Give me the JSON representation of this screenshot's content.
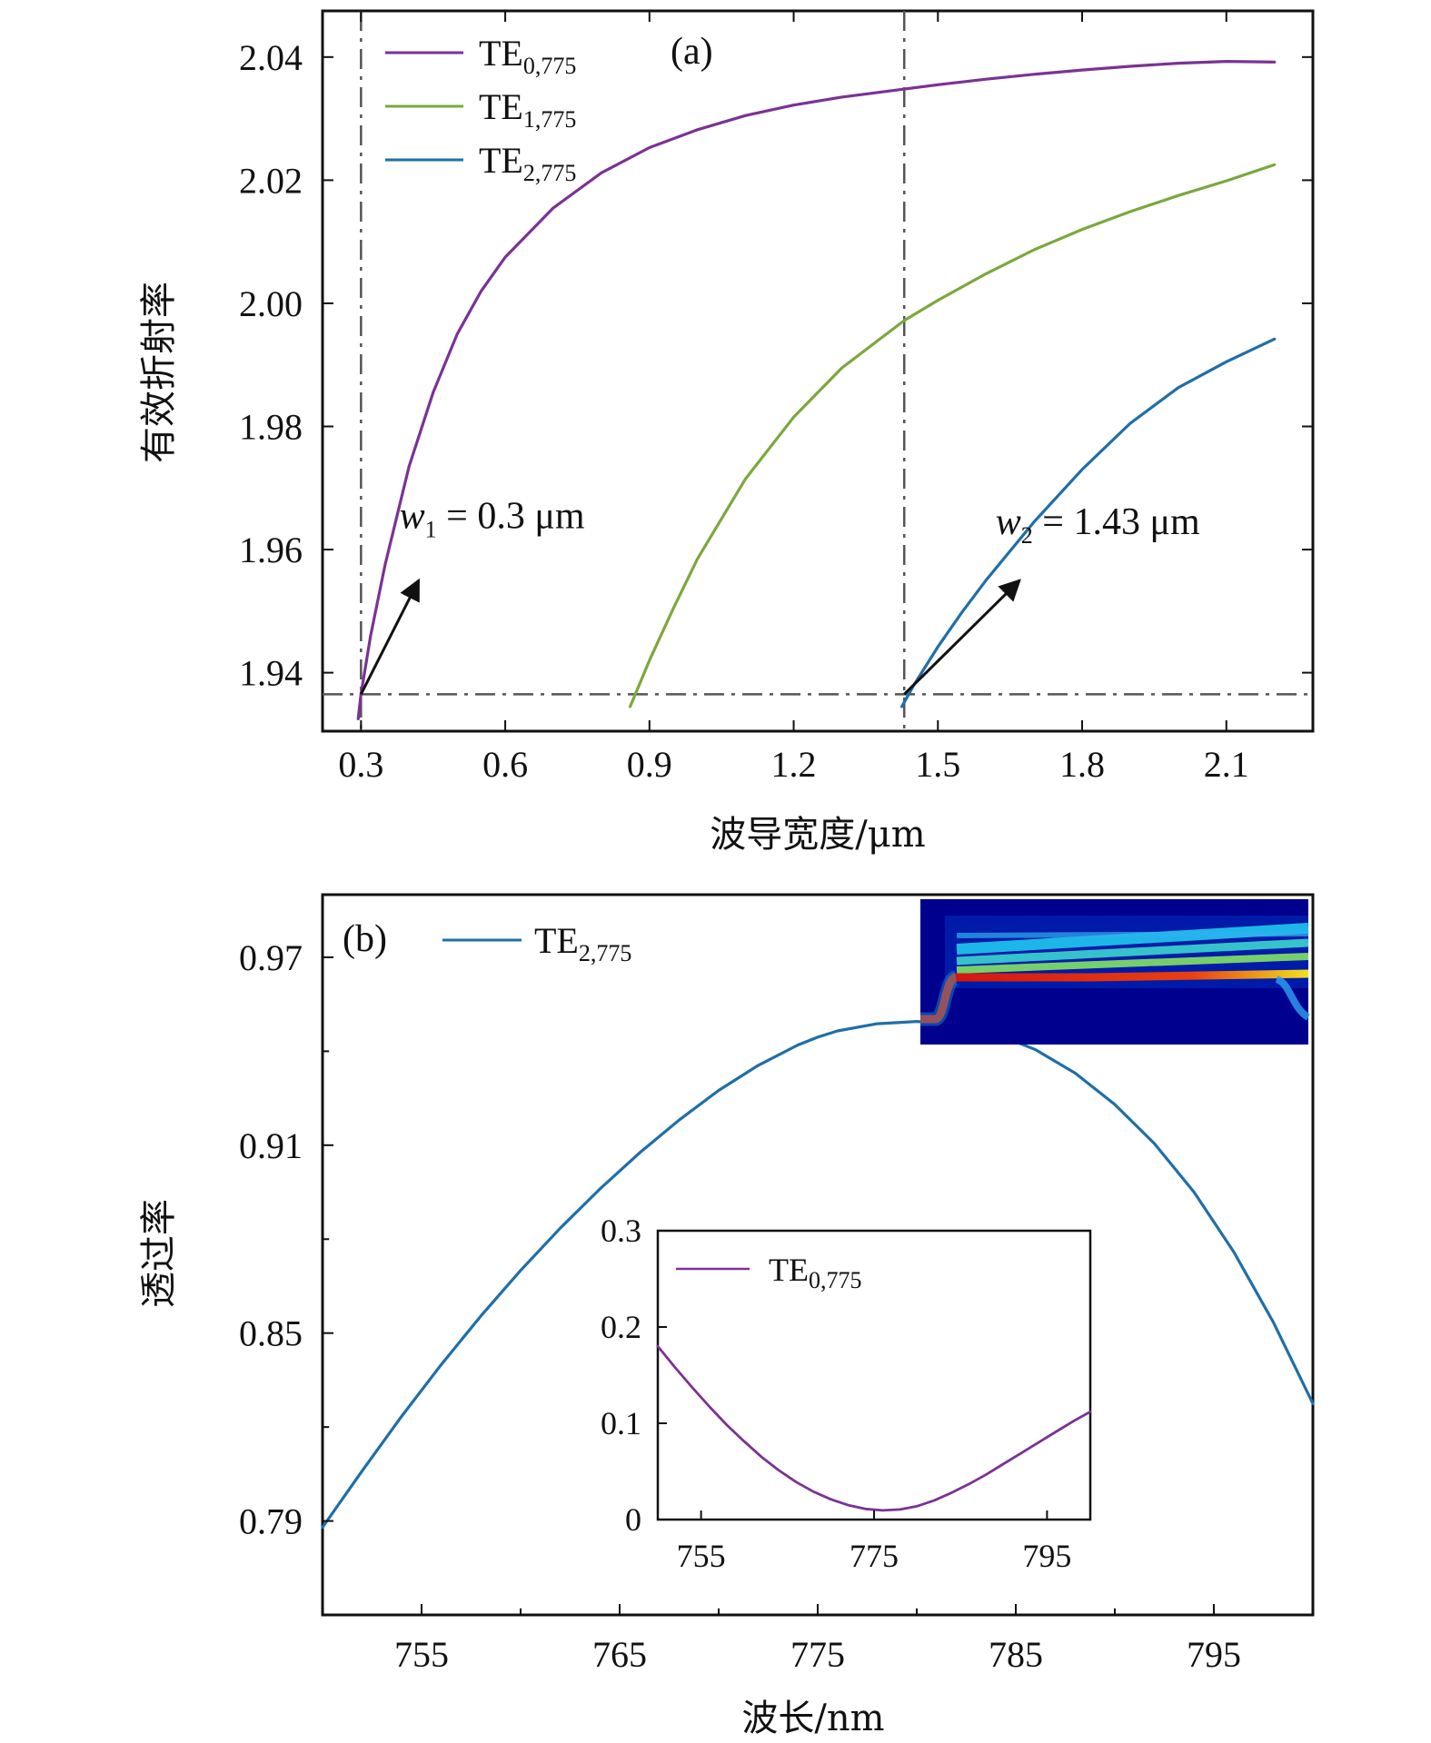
{
  "chart_data": [
    {
      "type": "line",
      "panel_label": "(a)",
      "xlabel": "波导宽度/μm",
      "ylabel": "有效折射率",
      "xlim": [
        0.22,
        2.28
      ],
      "ylim": [
        1.9305,
        2.0475
      ],
      "xticks": [
        0.3,
        0.6,
        0.9,
        1.2,
        1.5,
        1.8,
        2.1
      ],
      "xtick_labels": [
        "0.3",
        "0.6",
        "0.9",
        "1.2",
        "1.5",
        "1.8",
        "2.1"
      ],
      "yticks": [
        1.94,
        1.96,
        1.98,
        2.0,
        2.02,
        2.04
      ],
      "ytick_labels": [
        "1.94",
        "1.96",
        "1.98",
        "2.00",
        "2.02",
        "2.04"
      ],
      "series": [
        {
          "name": "TE0,775",
          "name_main": "TE",
          "name_sub": "0,775",
          "color": "#7B3294",
          "x": [
            0.294,
            0.3,
            0.32,
            0.35,
            0.4,
            0.45,
            0.5,
            0.55,
            0.6,
            0.7,
            0.8,
            0.9,
            1.0,
            1.1,
            1.2,
            1.3,
            1.43,
            1.5,
            1.6,
            1.7,
            1.8,
            1.9,
            2.0,
            2.1,
            2.2
          ],
          "y": [
            1.9325,
            1.9365,
            1.946,
            1.9575,
            1.9735,
            1.9855,
            1.995,
            2.002,
            2.0075,
            2.0155,
            2.0212,
            2.0253,
            2.0282,
            2.0305,
            2.0322,
            2.0335,
            2.0348,
            2.0355,
            2.0364,
            2.0372,
            2.0379,
            2.0385,
            2.039,
            2.0393,
            2.0392
          ]
        },
        {
          "name": "TE1,775",
          "name_main": "TE",
          "name_sub": "1,775",
          "color": "#7BA83C",
          "x": [
            0.86,
            0.9,
            0.95,
            1.0,
            1.1,
            1.2,
            1.3,
            1.43,
            1.5,
            1.6,
            1.7,
            1.8,
            1.9,
            2.0,
            2.1,
            2.2
          ],
          "y": [
            1.9345,
            1.942,
            1.9505,
            1.9585,
            1.9715,
            1.9815,
            1.9895,
            1.9972,
            2.0005,
            2.0048,
            2.0087,
            2.012,
            2.0149,
            2.0175,
            2.0199,
            2.0225
          ]
        },
        {
          "name": "TE2,775",
          "name_main": "TE",
          "name_sub": "2,775",
          "color": "#1F6FA8",
          "x": [
            1.425,
            1.45,
            1.5,
            1.55,
            1.6,
            1.7,
            1.8,
            1.9,
            2.0,
            2.1,
            2.2
          ],
          "y": [
            1.9345,
            1.938,
            1.9442,
            1.9498,
            1.955,
            1.9645,
            1.973,
            1.9805,
            1.9863,
            1.9905,
            1.9942
          ]
        }
      ],
      "reference_lines": {
        "vertical_x": [
          0.3,
          1.43
        ],
        "horizontal_y": 1.9365
      },
      "annotations": [
        {
          "var": "w",
          "sub": "1",
          "rest": " = 0.3 μm",
          "arrow_from": [
            0.3,
            1.9365
          ],
          "arrow_to": [
            0.42,
            1.955
          ],
          "text_at": [
            0.38,
            1.9635
          ]
        },
        {
          "var": "w",
          "sub": "2",
          "rest": " = 1.43 μm",
          "arrow_from": [
            1.43,
            1.9365
          ],
          "arrow_to": [
            1.67,
            1.955
          ],
          "text_at": [
            1.62,
            1.9625
          ]
        }
      ]
    },
    {
      "type": "line",
      "panel_label": "(b)",
      "xlabel": "波长/nm",
      "ylabel": "透过率",
      "xlim": [
        750,
        800
      ],
      "ylim": [
        0.76,
        0.99
      ],
      "xticks": [
        755,
        765,
        775,
        785,
        795
      ],
      "xtick_labels": [
        "755",
        "765",
        "775",
        "785",
        "795"
      ],
      "xminor": [
        750,
        760,
        770,
        780,
        790,
        800
      ],
      "yticks": [
        0.79,
        0.85,
        0.91,
        0.97
      ],
      "ytick_labels": [
        "0.79",
        "0.85",
        "0.91",
        "0.97"
      ],
      "yminor": [
        0.82,
        0.88,
        0.94
      ],
      "series": [
        {
          "name": "TE2,775",
          "name_main": "TE",
          "name_sub": "2,775",
          "color": "#1F6FA8",
          "x": [
            750,
            752,
            754,
            756,
            758,
            760,
            762,
            764,
            766,
            768,
            770,
            772,
            774,
            775,
            776,
            778,
            780,
            782,
            784,
            786,
            788,
            790,
            792,
            794,
            796,
            798,
            800
          ],
          "y": [
            0.788,
            0.806,
            0.8235,
            0.84,
            0.8555,
            0.87,
            0.8835,
            0.896,
            0.9075,
            0.918,
            0.9275,
            0.9355,
            0.942,
            0.9445,
            0.9465,
            0.9488,
            0.9495,
            0.9485,
            0.9455,
            0.9405,
            0.933,
            0.923,
            0.9105,
            0.895,
            0.876,
            0.8535,
            0.8275
          ]
        }
      ],
      "inset": {
        "type": "line",
        "xlim": [
          750,
          800
        ],
        "ylim": [
          0,
          0.3
        ],
        "xticks": [
          755,
          775,
          795
        ],
        "xtick_labels": [
          "755",
          "775",
          "795"
        ],
        "yticks": [
          0,
          0.1,
          0.2,
          0.3
        ],
        "ytick_labels": [
          "0",
          "0.1",
          "0.2",
          "0.3"
        ],
        "series": [
          {
            "name": "TE0,775",
            "name_main": "TE",
            "name_sub": "0,775",
            "color": "#7B3294",
            "x": [
              750,
              752,
              754,
              756,
              758,
              760,
              762,
              764,
              766,
              768,
              770,
              772,
              774,
              776,
              778,
              780,
              782,
              784,
              786,
              788,
              790,
              792,
              794,
              796,
              798,
              800
            ],
            "y": [
              0.18,
              0.158,
              0.137,
              0.117,
              0.098,
              0.081,
              0.065,
              0.051,
              0.039,
              0.029,
              0.021,
              0.015,
              0.011,
              0.0095,
              0.0105,
              0.014,
              0.02,
              0.028,
              0.037,
              0.047,
              0.058,
              0.069,
              0.08,
              0.091,
              0.102,
              0.112
            ]
          }
        ]
      },
      "heatmap_inset": {
        "description_icon": "mode-field-heatmap",
        "colors": {
          "background": "#00008F",
          "hot": "#D01010",
          "warm": "#F0E020",
          "cool": "#20C8F0"
        }
      }
    }
  ]
}
